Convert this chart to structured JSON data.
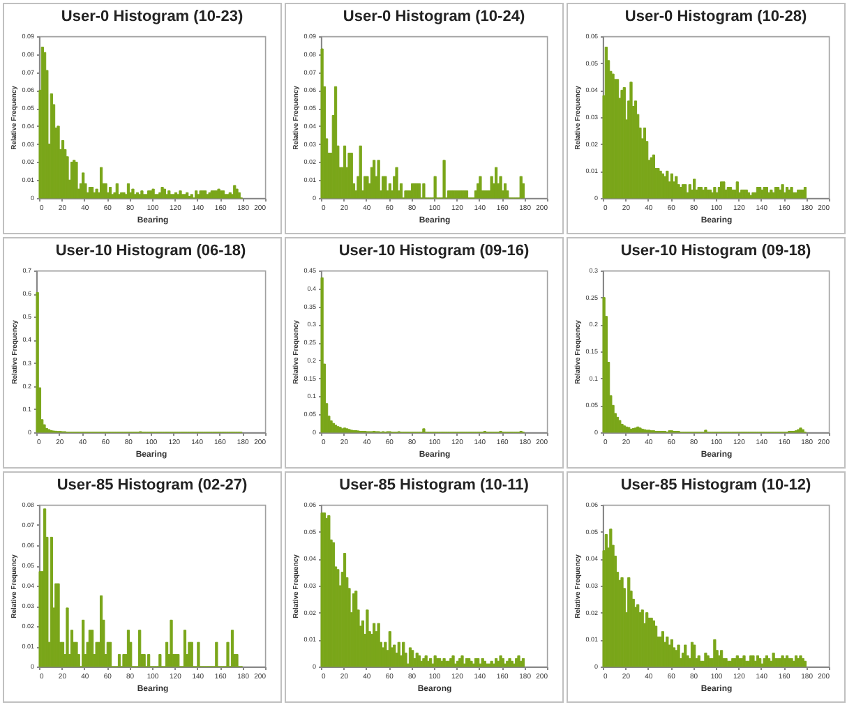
{
  "chart_data": [
    {
      "type": "histogram",
      "title": "User-0 Histogram (10-23)",
      "xlabel": "Bearing",
      "ylabel": "Relative Frequency",
      "color": "#7aa61a",
      "xlim": [
        0,
        200
      ],
      "xticks": [
        0,
        20,
        40,
        60,
        80,
        100,
        120,
        140,
        160,
        180,
        200
      ],
      "ylim": [
        0,
        0.09
      ],
      "yticks": [
        0,
        0.01,
        0.02,
        0.03,
        0.04,
        0.05,
        0.06,
        0.07,
        0.08,
        0.09
      ],
      "bins": [
        0,
        2,
        4,
        6,
        8,
        10,
        12,
        14,
        16,
        18,
        20,
        22,
        24,
        26,
        28,
        30,
        32,
        34,
        36,
        38,
        40,
        42,
        44,
        46,
        48,
        50,
        52,
        54,
        56,
        58,
        60,
        62,
        64,
        66,
        68,
        70,
        72,
        74,
        76,
        78,
        80,
        82,
        84,
        86,
        88,
        90,
        92,
        94,
        96,
        98,
        100,
        102,
        104,
        106,
        108,
        110,
        112,
        114,
        116,
        118,
        120,
        122,
        124,
        126,
        128,
        130,
        132,
        134,
        136,
        138,
        140,
        142,
        144,
        146,
        148,
        150,
        152,
        154,
        156,
        158,
        160,
        162,
        164,
        166,
        168,
        170,
        172,
        174,
        176,
        178,
        180
      ],
      "values": [
        0.06,
        0.084,
        0.081,
        0.071,
        0.03,
        0.058,
        0.052,
        0.039,
        0.04,
        0.027,
        0.032,
        0.027,
        0.023,
        0.01,
        0.02,
        0.021,
        0.02,
        0.005,
        0.008,
        0.014,
        0.008,
        0.003,
        0.006,
        0.006,
        0.003,
        0.005,
        0.003,
        0.017,
        0.008,
        0.008,
        0.003,
        0.006,
        0.002,
        0.003,
        0.008,
        0.002,
        0.003,
        0.003,
        0.002,
        0.008,
        0.003,
        0.005,
        0.002,
        0.003,
        0.002,
        0.004,
        0.002,
        0.002,
        0.004,
        0.004,
        0.005,
        0.002,
        0.002,
        0.003,
        0.006,
        0.005,
        0.002,
        0.004,
        0.002,
        0.002,
        0.003,
        0.002,
        0.004,
        0.002,
        0.002,
        0.003,
        0.001,
        0.002,
        0,
        0.004,
        0.002,
        0.004,
        0.004,
        0.004,
        0.002,
        0.003,
        0.004,
        0.004,
        0.004,
        0.005,
        0.004,
        0.004,
        0.002,
        0.002,
        0.003,
        0.002,
        0.007,
        0.005,
        0.003,
        0
      ]
    },
    {
      "type": "histogram",
      "title": "User-0 Histogram (10-24)",
      "xlabel": "Bearing",
      "ylabel": "Relative Frequency",
      "color": "#7aa61a",
      "xlim": [
        0,
        200
      ],
      "xticks": [
        0,
        20,
        40,
        60,
        80,
        100,
        120,
        140,
        160,
        180,
        200
      ],
      "ylim": [
        0,
        0.09
      ],
      "yticks": [
        0,
        0.01,
        0.02,
        0.03,
        0.04,
        0.05,
        0.06,
        0.07,
        0.08,
        0.09
      ],
      "bins": [
        0,
        2,
        4,
        6,
        8,
        10,
        12,
        14,
        16,
        18,
        20,
        22,
        24,
        26,
        28,
        30,
        32,
        34,
        36,
        38,
        40,
        42,
        44,
        46,
        48,
        50,
        52,
        54,
        56,
        58,
        60,
        62,
        64,
        66,
        68,
        70,
        72,
        74,
        76,
        78,
        80,
        82,
        84,
        86,
        88,
        90,
        92,
        94,
        96,
        98,
        100,
        102,
        104,
        106,
        108,
        110,
        112,
        114,
        116,
        118,
        120,
        122,
        124,
        126,
        128,
        130,
        132,
        134,
        136,
        138,
        140,
        142,
        144,
        146,
        148,
        150,
        152,
        154,
        156,
        158,
        160,
        162,
        164,
        166,
        168,
        170,
        172,
        174,
        176,
        178,
        180
      ],
      "values": [
        0.083,
        0.062,
        0.033,
        0.025,
        0.025,
        0.046,
        0.062,
        0.029,
        0.017,
        0.017,
        0.029,
        0.017,
        0.025,
        0.025,
        0.008,
        0.004,
        0.012,
        0.029,
        0.004,
        0.012,
        0.012,
        0.008,
        0.017,
        0.021,
        0.012,
        0.021,
        0.004,
        0.012,
        0.012,
        0.004,
        0.008,
        0.004,
        0.012,
        0.017,
        0.004,
        0.008,
        0,
        0.004,
        0.004,
        0.004,
        0.008,
        0.008,
        0.008,
        0.008,
        0,
        0.008,
        0,
        0,
        0,
        0,
        0.012,
        0,
        0,
        0,
        0.021,
        0,
        0.004,
        0.004,
        0.004,
        0.004,
        0.004,
        0.004,
        0.004,
        0.004,
        0.004,
        0,
        0,
        0,
        0.004,
        0.008,
        0.012,
        0.004,
        0.004,
        0.004,
        0.004,
        0.012,
        0.008,
        0.017,
        0.008,
        0.012,
        0.004,
        0.008,
        0.004,
        0,
        0,
        0,
        0,
        0,
        0.012,
        0.008
      ]
    },
    {
      "type": "histogram",
      "title": "User-0 Histogram (10-28)",
      "xlabel": "Bearing",
      "ylabel": "Relative Frequency",
      "color": "#7aa61a",
      "xlim": [
        0,
        200
      ],
      "xticks": [
        0,
        20,
        40,
        60,
        80,
        100,
        120,
        140,
        160,
        180,
        200
      ],
      "ylim": [
        0,
        0.06
      ],
      "yticks": [
        0,
        0.01,
        0.02,
        0.03,
        0.04,
        0.05,
        0.06
      ],
      "bins": [
        0,
        2,
        4,
        6,
        8,
        10,
        12,
        14,
        16,
        18,
        20,
        22,
        24,
        26,
        28,
        30,
        32,
        34,
        36,
        38,
        40,
        42,
        44,
        46,
        48,
        50,
        52,
        54,
        56,
        58,
        60,
        62,
        64,
        66,
        68,
        70,
        72,
        74,
        76,
        78,
        80,
        82,
        84,
        86,
        88,
        90,
        92,
        94,
        96,
        98,
        100,
        102,
        104,
        106,
        108,
        110,
        112,
        114,
        116,
        118,
        120,
        122,
        124,
        126,
        128,
        130,
        132,
        134,
        136,
        138,
        140,
        142,
        144,
        146,
        148,
        150,
        152,
        154,
        156,
        158,
        160,
        162,
        164,
        166,
        168,
        170,
        172,
        174,
        176,
        178,
        180
      ],
      "values": [
        0.038,
        0.056,
        0.051,
        0.047,
        0.046,
        0.044,
        0.044,
        0.037,
        0.04,
        0.041,
        0.029,
        0.036,
        0.043,
        0.034,
        0.036,
        0.031,
        0.026,
        0.022,
        0.026,
        0.021,
        0.014,
        0.015,
        0.016,
        0.011,
        0.011,
        0.01,
        0.009,
        0.008,
        0.01,
        0.006,
        0.009,
        0.006,
        0.008,
        0.005,
        0.004,
        0.005,
        0.005,
        0.002,
        0.005,
        0.003,
        0.007,
        0.003,
        0.004,
        0.004,
        0.003,
        0.004,
        0.003,
        0.003,
        0.002,
        0.004,
        0.002,
        0.004,
        0.006,
        0.006,
        0.003,
        0.004,
        0.004,
        0.003,
        0.003,
        0.006,
        0.002,
        0.003,
        0.003,
        0.003,
        0.002,
        0.001,
        0.002,
        0.002,
        0.004,
        0.004,
        0.003,
        0.004,
        0.004,
        0.002,
        0.003,
        0.002,
        0.004,
        0.004,
        0.003,
        0.005,
        0.002,
        0.004,
        0.003,
        0.004,
        0.002,
        0.002,
        0.003,
        0.003,
        0.003,
        0.004
      ]
    },
    {
      "type": "histogram",
      "title": "User-10 Histogram (06-18)",
      "xlabel": "Bearing",
      "ylabel": "Relative Frequency",
      "color": "#7aa61a",
      "xlim": [
        0,
        200
      ],
      "xticks": [
        0,
        20,
        40,
        60,
        80,
        100,
        120,
        140,
        160,
        180,
        200
      ],
      "ylim": [
        0,
        0.7
      ],
      "yticks": [
        0,
        0.1,
        0.2,
        0.3,
        0.4,
        0.5,
        0.6,
        0.7
      ],
      "bins": [
        0,
        2,
        4,
        6,
        8,
        10,
        12,
        14,
        16,
        18,
        20,
        22,
        24,
        26,
        28,
        30,
        32,
        34,
        36,
        38,
        40,
        42,
        44,
        46,
        48,
        50,
        52,
        54,
        56,
        58,
        60,
        62,
        64,
        66,
        68,
        70,
        72,
        74,
        76,
        78,
        80,
        82,
        84,
        86,
        88,
        90,
        92,
        94,
        96,
        98,
        100,
        102,
        104,
        106,
        108,
        110,
        112,
        114,
        116,
        118,
        120,
        122,
        124,
        126,
        128,
        130,
        132,
        134,
        136,
        138,
        140,
        142,
        144,
        146,
        148,
        150,
        152,
        154,
        156,
        158,
        160,
        162,
        164,
        166,
        168,
        170,
        172,
        174,
        176,
        178,
        180
      ],
      "values": [
        0.605,
        0.193,
        0.055,
        0.033,
        0.017,
        0.012,
        0.008,
        0.006,
        0.005,
        0.004,
        0.004,
        0.003,
        0.003,
        0,
        0,
        0,
        0,
        0,
        0,
        0,
        0,
        0,
        0,
        0,
        0,
        0,
        0,
        0,
        0,
        0,
        0,
        0,
        0,
        0,
        0,
        0,
        0,
        0,
        0,
        0,
        0,
        0,
        0,
        0,
        0,
        0.003,
        0,
        0,
        0,
        0,
        0,
        0,
        0,
        0,
        0,
        0,
        0,
        0,
        0,
        0,
        0,
        0,
        0,
        0,
        0,
        0,
        0,
        0,
        0,
        0,
        0,
        0,
        0,
        0,
        0,
        0,
        0,
        0,
        0,
        0,
        0,
        0,
        0,
        0,
        0,
        0,
        0,
        0,
        0,
        0
      ]
    },
    {
      "type": "histogram",
      "title": "User-10 Histogram (09-16)",
      "xlabel": "Bearing",
      "ylabel": "Relative Frequency",
      "color": "#7aa61a",
      "xlim": [
        0,
        200
      ],
      "xticks": [
        0,
        20,
        40,
        60,
        80,
        100,
        120,
        140,
        160,
        180,
        200
      ],
      "ylim": [
        0,
        0.45
      ],
      "yticks": [
        0,
        0.05,
        0.1,
        0.15,
        0.2,
        0.25,
        0.3,
        0.35,
        0.4,
        0.45
      ],
      "bins": [
        0,
        2,
        4,
        6,
        8,
        10,
        12,
        14,
        16,
        18,
        20,
        22,
        24,
        26,
        28,
        30,
        32,
        34,
        36,
        38,
        40,
        42,
        44,
        46,
        48,
        50,
        52,
        54,
        56,
        58,
        60,
        62,
        64,
        66,
        68,
        70,
        72,
        74,
        76,
        78,
        80,
        82,
        84,
        86,
        88,
        90,
        92,
        94,
        96,
        98,
        100,
        102,
        104,
        106,
        108,
        110,
        112,
        114,
        116,
        118,
        120,
        122,
        124,
        126,
        128,
        130,
        132,
        134,
        136,
        138,
        140,
        142,
        144,
        146,
        148,
        150,
        152,
        154,
        156,
        158,
        160,
        162,
        164,
        166,
        168,
        170,
        172,
        174,
        176,
        178,
        180
      ],
      "values": [
        0.43,
        0.19,
        0.08,
        0.045,
        0.032,
        0.025,
        0.02,
        0.016,
        0.014,
        0.01,
        0.012,
        0.01,
        0.008,
        0.006,
        0.005,
        0.005,
        0.004,
        0.003,
        0.003,
        0.003,
        0.002,
        0.002,
        0.002,
        0.003,
        0.002,
        0.002,
        0,
        0.002,
        0,
        0.002,
        0.002,
        0,
        0,
        0,
        0.002,
        0,
        0,
        0,
        0,
        0,
        0,
        0,
        0,
        0,
        0,
        0.01,
        0,
        0,
        0,
        0,
        0,
        0,
        0,
        0,
        0,
        0,
        0,
        0,
        0,
        0,
        0,
        0,
        0,
        0,
        0,
        0,
        0,
        0,
        0,
        0,
        0,
        0,
        0.003,
        0,
        0,
        0,
        0,
        0,
        0,
        0.003,
        0,
        0,
        0,
        0,
        0,
        0,
        0,
        0,
        0.003,
        0
      ]
    },
    {
      "type": "histogram",
      "title": "User-10 Histogram (09-18)",
      "xlabel": "Bearing",
      "ylabel": "Relative Frequency",
      "color": "#7aa61a",
      "xlim": [
        0,
        200
      ],
      "xticks": [
        0,
        20,
        40,
        60,
        80,
        100,
        120,
        140,
        160,
        180,
        200
      ],
      "ylim": [
        0,
        0.3
      ],
      "yticks": [
        0,
        0.05,
        0.1,
        0.15,
        0.2,
        0.25,
        0.3
      ],
      "bins": [
        0,
        2,
        4,
        6,
        8,
        10,
        12,
        14,
        16,
        18,
        20,
        22,
        24,
        26,
        28,
        30,
        32,
        34,
        36,
        38,
        40,
        42,
        44,
        46,
        48,
        50,
        52,
        54,
        56,
        58,
        60,
        62,
        64,
        66,
        68,
        70,
        72,
        74,
        76,
        78,
        80,
        82,
        84,
        86,
        88,
        90,
        92,
        94,
        96,
        98,
        100,
        102,
        104,
        106,
        108,
        110,
        112,
        114,
        116,
        118,
        120,
        122,
        124,
        126,
        128,
        130,
        132,
        134,
        136,
        138,
        140,
        142,
        144,
        146,
        148,
        150,
        152,
        154,
        156,
        158,
        160,
        162,
        164,
        166,
        168,
        170,
        172,
        174,
        176,
        178,
        180
      ],
      "values": [
        0.25,
        0.215,
        0.13,
        0.068,
        0.05,
        0.035,
        0.028,
        0.022,
        0.015,
        0.012,
        0.01,
        0.009,
        0.006,
        0.007,
        0.008,
        0.01,
        0.008,
        0.006,
        0.005,
        0.004,
        0.004,
        0.003,
        0.003,
        0.002,
        0.002,
        0.002,
        0.002,
        0.002,
        0,
        0.003,
        0.003,
        0.002,
        0.002,
        0.002,
        0,
        0,
        0,
        0,
        0,
        0,
        0,
        0,
        0,
        0,
        0,
        0.004,
        0,
        0,
        0,
        0,
        0,
        0,
        0,
        0,
        0,
        0,
        0,
        0,
        0,
        0,
        0,
        0,
        0,
        0,
        0,
        0,
        0,
        0,
        0,
        0,
        0,
        0,
        0,
        0,
        0,
        0,
        0,
        0,
        0,
        0,
        0,
        0,
        0.002,
        0.002,
        0.002,
        0.003,
        0.005,
        0.008,
        0.005,
        0
      ]
    },
    {
      "type": "histogram",
      "title": "User-85 Histogram (02-27)",
      "xlabel": "Bearing",
      "ylabel": "Relative Frequency",
      "color": "#7aa61a",
      "xlim": [
        0,
        200
      ],
      "xticks": [
        0,
        20,
        40,
        60,
        80,
        100,
        120,
        140,
        160,
        180,
        200
      ],
      "ylim": [
        0,
        0.08
      ],
      "yticks": [
        0,
        0.01,
        0.02,
        0.03,
        0.04,
        0.05,
        0.06,
        0.07,
        0.08
      ],
      "bins": [
        0,
        2,
        4,
        6,
        8,
        10,
        12,
        14,
        16,
        18,
        20,
        22,
        24,
        26,
        28,
        30,
        32,
        34,
        36,
        38,
        40,
        42,
        44,
        46,
        48,
        50,
        52,
        54,
        56,
        58,
        60,
        62,
        64,
        66,
        68,
        70,
        72,
        74,
        76,
        78,
        80,
        82,
        84,
        86,
        88,
        90,
        92,
        94,
        96,
        98,
        100,
        102,
        104,
        106,
        108,
        110,
        112,
        114,
        116,
        118,
        120,
        122,
        124,
        126,
        128,
        130,
        132,
        134,
        136,
        138,
        140,
        142,
        144,
        146,
        148,
        150,
        152,
        154,
        156,
        158,
        160,
        162,
        164,
        166,
        168,
        170,
        172,
        174,
        176,
        178,
        180
      ],
      "values": [
        0.047,
        0.047,
        0.078,
        0.064,
        0.012,
        0.064,
        0.029,
        0.041,
        0.041,
        0.012,
        0.012,
        0.006,
        0.029,
        0.006,
        0.018,
        0.012,
        0.012,
        0.006,
        0,
        0.023,
        0.006,
        0.012,
        0.018,
        0.018,
        0.006,
        0.012,
        0.012,
        0.035,
        0.023,
        0.006,
        0.012,
        0.012,
        0,
        0,
        0,
        0.006,
        0,
        0.006,
        0.006,
        0.018,
        0.012,
        0,
        0,
        0,
        0.018,
        0.006,
        0.006,
        0,
        0.006,
        0,
        0,
        0,
        0,
        0.006,
        0,
        0,
        0.012,
        0.006,
        0.023,
        0.006,
        0.006,
        0.006,
        0,
        0,
        0.018,
        0.006,
        0.012,
        0.012,
        0,
        0,
        0.012,
        0,
        0,
        0,
        0,
        0,
        0,
        0,
        0.012,
        0,
        0,
        0,
        0,
        0.012,
        0,
        0.018,
        0.006,
        0.006,
        0,
        0
      ]
    },
    {
      "type": "histogram",
      "title": "User-85 Histogram (10-11)",
      "xlabel": "Bearong",
      "ylabel": "Relative Frequency",
      "color": "#7aa61a",
      "xlim": [
        0,
        200
      ],
      "xticks": [
        0,
        20,
        40,
        60,
        80,
        100,
        120,
        140,
        160,
        180,
        200
      ],
      "ylim": [
        0,
        0.06
      ],
      "yticks": [
        0,
        0.01,
        0.02,
        0.03,
        0.04,
        0.05,
        0.06
      ],
      "bins": [
        0,
        2,
        4,
        6,
        8,
        10,
        12,
        14,
        16,
        18,
        20,
        22,
        24,
        26,
        28,
        30,
        32,
        34,
        36,
        38,
        40,
        42,
        44,
        46,
        48,
        50,
        52,
        54,
        56,
        58,
        60,
        62,
        64,
        66,
        68,
        70,
        72,
        74,
        76,
        78,
        80,
        82,
        84,
        86,
        88,
        90,
        92,
        94,
        96,
        98,
        100,
        102,
        104,
        106,
        108,
        110,
        112,
        114,
        116,
        118,
        120,
        122,
        124,
        126,
        128,
        130,
        132,
        134,
        136,
        138,
        140,
        142,
        144,
        146,
        148,
        150,
        152,
        154,
        156,
        158,
        160,
        162,
        164,
        166,
        168,
        170,
        172,
        174,
        176,
        178,
        180
      ],
      "values": [
        0.057,
        0.057,
        0.055,
        0.056,
        0.047,
        0.046,
        0.037,
        0.036,
        0.03,
        0.035,
        0.042,
        0.033,
        0.029,
        0.02,
        0.027,
        0.028,
        0.021,
        0.015,
        0.017,
        0.012,
        0.021,
        0.013,
        0.012,
        0.016,
        0.013,
        0.016,
        0.009,
        0.007,
        0.009,
        0.006,
        0.013,
        0.007,
        0.008,
        0.005,
        0.009,
        0.004,
        0.009,
        0.005,
        0.001,
        0.007,
        0.006,
        0.003,
        0.005,
        0.004,
        0.002,
        0.003,
        0.004,
        0.002,
        0.003,
        0.001,
        0.004,
        0.003,
        0.003,
        0.002,
        0.003,
        0.002,
        0.002,
        0.003,
        0.004,
        0.001,
        0.002,
        0.003,
        0.004,
        0.001,
        0.003,
        0.003,
        0.002,
        0.001,
        0.003,
        0.003,
        0.001,
        0.003,
        0.002,
        0.001,
        0.001,
        0.002,
        0.001,
        0.003,
        0.002,
        0.004,
        0.003,
        0.001,
        0.002,
        0.003,
        0.002,
        0.001,
        0.003,
        0.004,
        0.002,
        0.003
      ]
    },
    {
      "type": "histogram",
      "title": "User-85 Histogram (10-12)",
      "xlabel": "Bearing",
      "ylabel": "Relative Frequency",
      "color": "#7aa61a",
      "xlim": [
        0,
        200
      ],
      "xticks": [
        0,
        20,
        40,
        60,
        80,
        100,
        120,
        140,
        160,
        180,
        200
      ],
      "ylim": [
        0,
        0.06
      ],
      "yticks": [
        0,
        0.01,
        0.02,
        0.03,
        0.04,
        0.05,
        0.06
      ],
      "bins": [
        0,
        2,
        4,
        6,
        8,
        10,
        12,
        14,
        16,
        18,
        20,
        22,
        24,
        26,
        28,
        30,
        32,
        34,
        36,
        38,
        40,
        42,
        44,
        46,
        48,
        50,
        52,
        54,
        56,
        58,
        60,
        62,
        64,
        66,
        68,
        70,
        72,
        74,
        76,
        78,
        80,
        82,
        84,
        86,
        88,
        90,
        92,
        94,
        96,
        98,
        100,
        102,
        104,
        106,
        108,
        110,
        112,
        114,
        116,
        118,
        120,
        122,
        124,
        126,
        128,
        130,
        132,
        134,
        136,
        138,
        140,
        142,
        144,
        146,
        148,
        150,
        152,
        154,
        156,
        158,
        160,
        162,
        164,
        166,
        168,
        170,
        172,
        174,
        176,
        178,
        180
      ],
      "values": [
        0.043,
        0.049,
        0.044,
        0.051,
        0.045,
        0.041,
        0.035,
        0.032,
        0.033,
        0.029,
        0.02,
        0.033,
        0.028,
        0.025,
        0.022,
        0.023,
        0.02,
        0.021,
        0.016,
        0.02,
        0.018,
        0.018,
        0.017,
        0.015,
        0.011,
        0.011,
        0.013,
        0.009,
        0.011,
        0.008,
        0.01,
        0.007,
        0.006,
        0.008,
        0.003,
        0.005,
        0.008,
        0.004,
        0.003,
        0.009,
        0.008,
        0.003,
        0.004,
        0.002,
        0.002,
        0.005,
        0.004,
        0.003,
        0.003,
        0.01,
        0.006,
        0.004,
        0.006,
        0.003,
        0.003,
        0.002,
        0.002,
        0.003,
        0.003,
        0.004,
        0.003,
        0.003,
        0.004,
        0.002,
        0.002,
        0.004,
        0.004,
        0.002,
        0.004,
        0.003,
        0.001,
        0.003,
        0.004,
        0.003,
        0.002,
        0.005,
        0.003,
        0.003,
        0.003,
        0.004,
        0.003,
        0.004,
        0.003,
        0.003,
        0.002,
        0.004,
        0.003,
        0.004,
        0.003,
        0.002
      ]
    }
  ]
}
